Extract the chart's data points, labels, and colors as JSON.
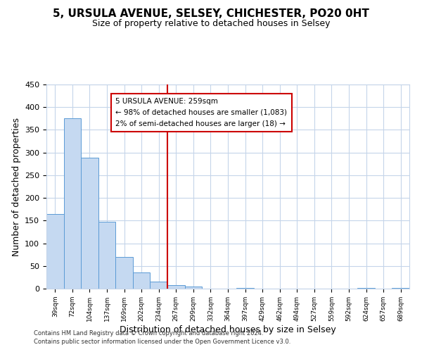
{
  "title": "5, URSULA AVENUE, SELSEY, CHICHESTER, PO20 0HT",
  "subtitle": "Size of property relative to detached houses in Selsey",
  "xlabel": "Distribution of detached houses by size in Selsey",
  "ylabel": "Number of detached properties",
  "bar_labels": [
    "39sqm",
    "72sqm",
    "104sqm",
    "137sqm",
    "169sqm",
    "202sqm",
    "234sqm",
    "267sqm",
    "299sqm",
    "332sqm",
    "364sqm",
    "397sqm",
    "429sqm",
    "462sqm",
    "494sqm",
    "527sqm",
    "559sqm",
    "592sqm",
    "624sqm",
    "657sqm",
    "689sqm"
  ],
  "bar_values": [
    165,
    375,
    288,
    148,
    70,
    35,
    16,
    8,
    5,
    0,
    0,
    2,
    0,
    0,
    0,
    0,
    0,
    0,
    2,
    0,
    2
  ],
  "bar_color": "#c5d9f1",
  "bar_edge_color": "#5b9bd5",
  "property_line_index": 7,
  "property_line_color": "#cc0000",
  "annotation_title": "5 URSULA AVENUE: 259sqm",
  "annotation_line1": "← 98% of detached houses are smaller (1,083)",
  "annotation_line2": "2% of semi-detached houses are larger (18) →",
  "annotation_box_color": "#ffffff",
  "annotation_box_edge": "#cc0000",
  "ylim": [
    0,
    450
  ],
  "yticks": [
    0,
    50,
    100,
    150,
    200,
    250,
    300,
    350,
    400,
    450
  ],
  "footer1": "Contains HM Land Registry data © Crown copyright and database right 2024.",
  "footer2": "Contains public sector information licensed under the Open Government Licence v3.0.",
  "bg_color": "#ffffff",
  "grid_color": "#c5d5ea",
  "title_fontsize": 11,
  "subtitle_fontsize": 9
}
